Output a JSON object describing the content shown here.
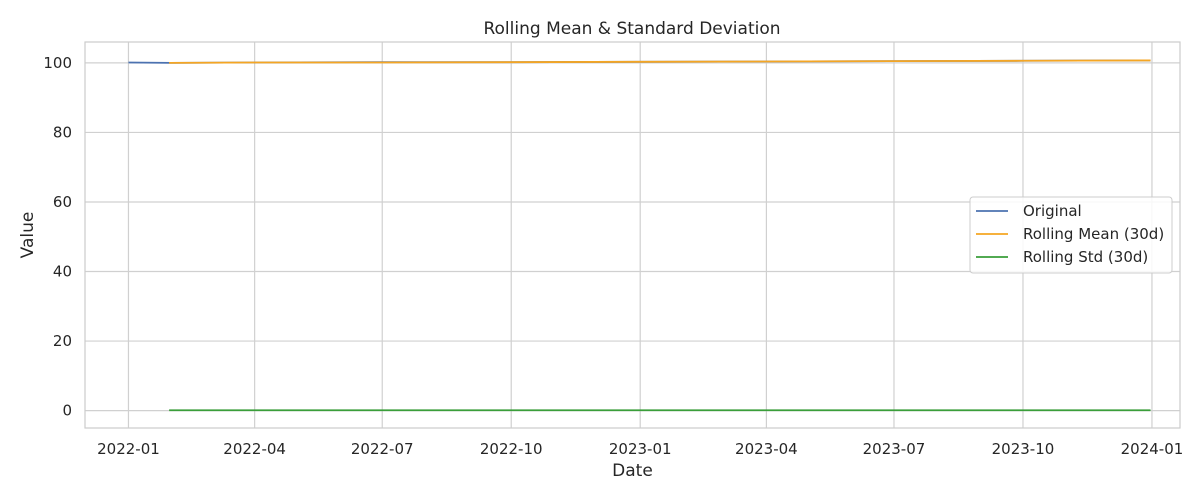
{
  "chart_data": {
    "type": "line",
    "title": "Rolling Mean & Standard Deviation",
    "xlabel": "Date",
    "ylabel": "Value",
    "x_range": [
      "2021-12-01",
      "2024-01-21"
    ],
    "ylim": [
      -5,
      106
    ],
    "grid": true,
    "legend_placement": "right",
    "x_ticks": [
      {
        "date": "2022-01-01",
        "label": "2022-01"
      },
      {
        "date": "2022-04-01",
        "label": "2022-04"
      },
      {
        "date": "2022-07-01",
        "label": "2022-07"
      },
      {
        "date": "2022-10-01",
        "label": "2022-10"
      },
      {
        "date": "2023-01-01",
        "label": "2023-01"
      },
      {
        "date": "2023-04-01",
        "label": "2023-04"
      },
      {
        "date": "2023-07-01",
        "label": "2023-07"
      },
      {
        "date": "2023-10-01",
        "label": "2023-10"
      },
      {
        "date": "2024-01-01",
        "label": "2024-01"
      }
    ],
    "y_ticks": [
      0,
      20,
      40,
      60,
      80,
      100
    ],
    "series": [
      {
        "name": "Original",
        "color": "#4c72b0",
        "x": [
          "2022-01-01",
          "2022-01-31",
          "2022-04-01",
          "2022-07-01",
          "2022-10-01",
          "2023-01-01",
          "2023-04-01",
          "2023-07-01",
          "2023-10-01",
          "2023-12-31"
        ],
        "y": [
          100.1,
          100.0,
          100.1,
          100.2,
          100.2,
          100.3,
          100.4,
          100.5,
          100.6,
          100.7
        ]
      },
      {
        "name": "Rolling Mean (30d)",
        "color": "#f5a623",
        "x": [
          "2022-01-30",
          "2022-04-01",
          "2022-07-01",
          "2022-10-01",
          "2023-01-01",
          "2023-04-01",
          "2023-07-01",
          "2023-10-01",
          "2023-12-31"
        ],
        "y": [
          100.0,
          100.1,
          100.1,
          100.2,
          100.3,
          100.4,
          100.5,
          100.6,
          100.7
        ]
      },
      {
        "name": "Rolling Std (30d)",
        "color": "#3a9e3a",
        "x": [
          "2022-01-30",
          "2022-04-01",
          "2022-07-01",
          "2022-10-01",
          "2023-01-01",
          "2023-04-01",
          "2023-07-01",
          "2023-10-01",
          "2023-12-31"
        ],
        "y": [
          0.1,
          0.1,
          0.1,
          0.1,
          0.1,
          0.1,
          0.1,
          0.1,
          0.1
        ]
      }
    ]
  }
}
